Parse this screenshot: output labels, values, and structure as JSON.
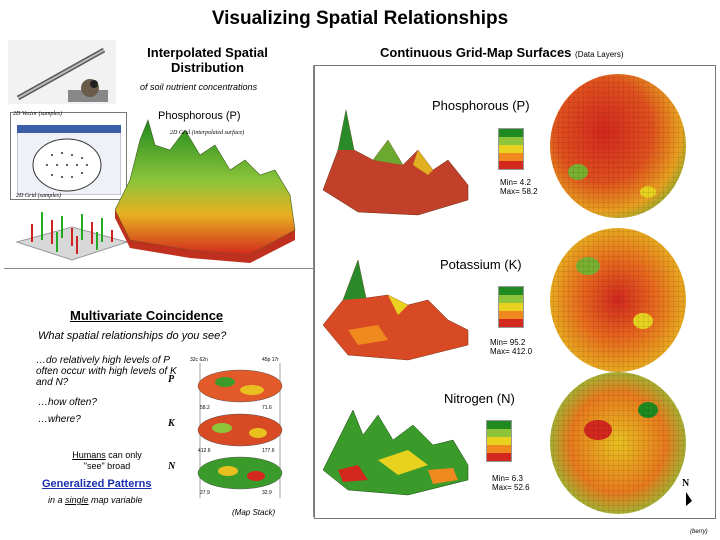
{
  "page": {
    "title": "Visualizing Spatial Relationships"
  },
  "left_panel": {
    "heading": "Interpolated Spatial Distribution",
    "subtitle": "of soil nutrient concentrations",
    "surface_title": "Phosphorous (P)",
    "inset_labels": {
      "vector": "2D Vector (samples)",
      "grid_interp": "2D Grid (interpolated surface)",
      "grid_samples": "2D Grid (samples)"
    }
  },
  "right_panel": {
    "heading": "Continuous Grid-Map Surfaces",
    "heading_note": "(Data Layers)",
    "layers": [
      {
        "name": "Phosphorous (P)",
        "min": "Min= 4.2",
        "max": "Max= 58.2"
      },
      {
        "name": "Potassium (K)",
        "min": "Min= 95.2",
        "max": "Max= 412.0"
      },
      {
        "name": "Nitrogen (N)",
        "min": "Min= 6.3",
        "max": "Max= 52.6"
      }
    ],
    "north_label": "N"
  },
  "multivariate": {
    "heading": "Multivariate Coincidence",
    "question": "What spatial relationships do you see?",
    "q1": "…do relatively high levels of P often occur with high levels of K and N?",
    "q2": "…how often?",
    "q3": "…where?",
    "humans_prefix": "Humans",
    "humans_rest": " can only \"see\" broad",
    "generalized": "Generalized Patterns",
    "single_prefix": "in a ",
    "single_word": "single",
    "single_suffix": " map variable",
    "stack_caption": "(Map Stack)",
    "stack_labels": {
      "p": "P",
      "k": "K",
      "n": "N",
      "v1": "32c 62n",
      "v2": "45p 17r",
      "v3": "58.2",
      "v4": "71.6",
      "v5": "412.6",
      "v6": "177.6",
      "v7": "27.9",
      "v8": "32.9"
    }
  },
  "footer": {
    "credit": "(berry)"
  },
  "colors": {
    "high": "#1f8a1f",
    "mid": "#e8d21f",
    "low": "#d2281e"
  }
}
